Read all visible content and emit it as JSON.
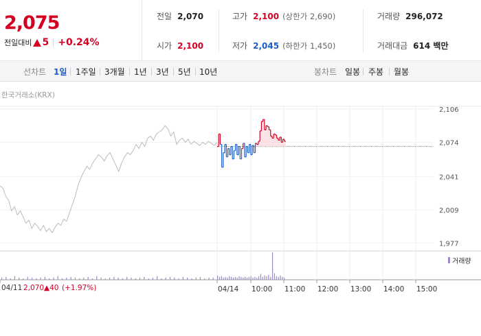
{
  "price": {
    "current": "2,075",
    "change_label": "전일대비",
    "change_value": "5",
    "change_rate": "+0.24%"
  },
  "stats": {
    "prev_close": {
      "label": "전일",
      "value": "2,070"
    },
    "open": {
      "label": "시가",
      "value": "2,100"
    },
    "high": {
      "label": "고가",
      "value": "2,100",
      "limit": "(상한가 2,690)"
    },
    "low": {
      "label": "저가",
      "value": "2,045",
      "limit": "(하한가 1,450)"
    },
    "volume": {
      "label": "거래량",
      "value": "296,072"
    },
    "amount": {
      "label": "거래대금",
      "value": "614 백만"
    }
  },
  "tabs": {
    "line_label": "선차트",
    "line_items": [
      "1일",
      "1주일",
      "3개월",
      "1년",
      "3년",
      "5년",
      "10년"
    ],
    "active": "1일",
    "candle_label": "봉차트",
    "candle_items": [
      "일봉",
      "주봉",
      "월봉"
    ]
  },
  "exchange": "한국거래소(KRX)",
  "legend": {
    "volume": "거래량"
  },
  "footer": {
    "prev_date": "04/11",
    "prev_close": "2,070",
    "prev_change": "40",
    "prev_rate": "(+1.97%)"
  },
  "colors": {
    "up": "#d40022",
    "down": "#1a5cc8",
    "prev_day": "#bbbbbb",
    "volume": "#9b8ac4"
  },
  "chart_data": {
    "type": "line",
    "y_ticks": [
      "2,106",
      "2,074",
      "2,041",
      "2,009",
      "1,977"
    ],
    "y_tick_values": [
      2106,
      2074,
      2041,
      2009,
      1977
    ],
    "ylim": [
      1970,
      2112
    ],
    "x_ticks": [
      "04/11",
      "04/14",
      "10:00",
      "11:00",
      "12:00",
      "13:00",
      "14:00",
      "15:00"
    ],
    "base_price": 2070,
    "series": [
      {
        "values": [
          2032,
          2030,
          2022,
          2018,
          2008,
          2012,
          2004,
          2008,
          2002,
          1996,
          1999,
          1991,
          1996,
          1993,
          1989,
          1994,
          1988,
          1991,
          1987,
          1992,
          1996,
          1994,
          2000,
          1998,
          2006,
          2014,
          2022,
          2033,
          2040,
          2046,
          2051,
          2048,
          2054,
          2058,
          2062,
          2060,
          2056,
          2061,
          2064,
          2058,
          2052,
          2046,
          2054,
          2060,
          2064,
          2062,
          2066,
          2072,
          2068,
          2074,
          2070,
          2078,
          2080,
          2076,
          2082,
          2084,
          2086,
          2090,
          2087,
          2080,
          2084,
          2072,
          2076,
          2078,
          2074,
          2077,
          2072,
          2075,
          2073,
          2071,
          2074,
          2072,
          2075,
          2073,
          2071,
          2074
        ]
      },
      {
        "values": [
          2070,
          2082,
          2072,
          2050,
          2064,
          2072,
          2060,
          2068,
          2062,
          2070,
          2058,
          2066,
          2072,
          2062,
          2070,
          2058,
          2068,
          2073,
          2060,
          2070,
          2064,
          2072,
          2062,
          2071,
          2064,
          2073,
          2072,
          2075,
          2085,
          2094,
          2096,
          2086,
          2090,
          2089,
          2086,
          2080,
          2078,
          2082,
          2081,
          2078,
          2076,
          2079,
          2074,
          2077,
          2075,
          2075
        ]
      }
    ],
    "volume": [
      3,
      4,
      2,
      5,
      3,
      2,
      4,
      3,
      2,
      3,
      4,
      2,
      3,
      5,
      2,
      3,
      4,
      3,
      2,
      3,
      4,
      2,
      5,
      3,
      2,
      3,
      4,
      3,
      2,
      4,
      3,
      2,
      3,
      4,
      2,
      3,
      5,
      2,
      3,
      4,
      3,
      2,
      4,
      3,
      2,
      3,
      4,
      2,
      3,
      3,
      6,
      4,
      5,
      3,
      4,
      3,
      5,
      4,
      3,
      4,
      3,
      5,
      4,
      3,
      4,
      3,
      4,
      5,
      3,
      4,
      3,
      5,
      8,
      4,
      6,
      5,
      7,
      4,
      38,
      9,
      5,
      4,
      6,
      4,
      3
    ]
  }
}
